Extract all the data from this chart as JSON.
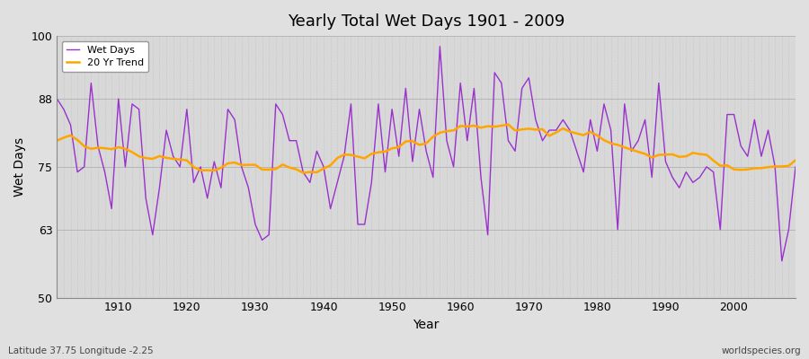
{
  "title": "Yearly Total Wet Days 1901 - 2009",
  "xlabel": "Year",
  "ylabel": "Wet Days",
  "footnote_left": "Latitude 37.75 Longitude -2.25",
  "footnote_right": "worldspecies.org",
  "ylim": [
    50,
    100
  ],
  "yticks": [
    50,
    63,
    75,
    88,
    100
  ],
  "fig_bg_color": "#e0e0e0",
  "plot_bg_color": "#d8d8d8",
  "wet_days_color": "#9932CC",
  "trend_color": "#FFA500",
  "legend_wet": "Wet Days",
  "legend_trend": "20 Yr Trend",
  "years": [
    1901,
    1902,
    1903,
    1904,
    1905,
    1906,
    1907,
    1908,
    1909,
    1910,
    1911,
    1912,
    1913,
    1914,
    1915,
    1916,
    1917,
    1918,
    1919,
    1920,
    1921,
    1922,
    1923,
    1924,
    1925,
    1926,
    1927,
    1928,
    1929,
    1930,
    1931,
    1932,
    1933,
    1934,
    1935,
    1936,
    1937,
    1938,
    1939,
    1940,
    1941,
    1942,
    1943,
    1944,
    1945,
    1946,
    1947,
    1948,
    1949,
    1950,
    1951,
    1952,
    1953,
    1954,
    1955,
    1956,
    1957,
    1958,
    1959,
    1960,
    1961,
    1962,
    1963,
    1964,
    1965,
    1966,
    1967,
    1968,
    1969,
    1970,
    1971,
    1972,
    1973,
    1974,
    1975,
    1976,
    1977,
    1978,
    1979,
    1980,
    1981,
    1982,
    1983,
    1984,
    1985,
    1986,
    1987,
    1988,
    1989,
    1990,
    1991,
    1992,
    1993,
    1994,
    1995,
    1996,
    1997,
    1998,
    1999,
    2000,
    2001,
    2002,
    2003,
    2004,
    2005,
    2006,
    2007,
    2008,
    2009
  ],
  "wet_days": [
    88,
    86,
    83,
    74,
    75,
    91,
    79,
    74,
    67,
    88,
    75,
    87,
    86,
    69,
    62,
    71,
    82,
    77,
    75,
    86,
    72,
    75,
    69,
    76,
    71,
    86,
    84,
    75,
    71,
    64,
    61,
    62,
    87,
    85,
    80,
    80,
    74,
    72,
    78,
    75,
    67,
    72,
    77,
    87,
    64,
    64,
    72,
    87,
    74,
    86,
    77,
    90,
    76,
    86,
    78,
    73,
    98,
    80,
    75,
    91,
    80,
    90,
    73,
    62,
    93,
    91,
    80,
    78,
    90,
    92,
    84,
    80,
    82,
    82,
    84,
    82,
    78,
    74,
    84,
    78,
    87,
    82,
    63,
    87,
    78,
    80,
    84,
    73,
    91,
    76,
    73,
    71,
    74,
    72,
    73,
    75,
    74,
    63,
    85,
    85,
    79,
    77,
    84,
    77,
    82,
    75,
    57,
    63,
    75
  ]
}
